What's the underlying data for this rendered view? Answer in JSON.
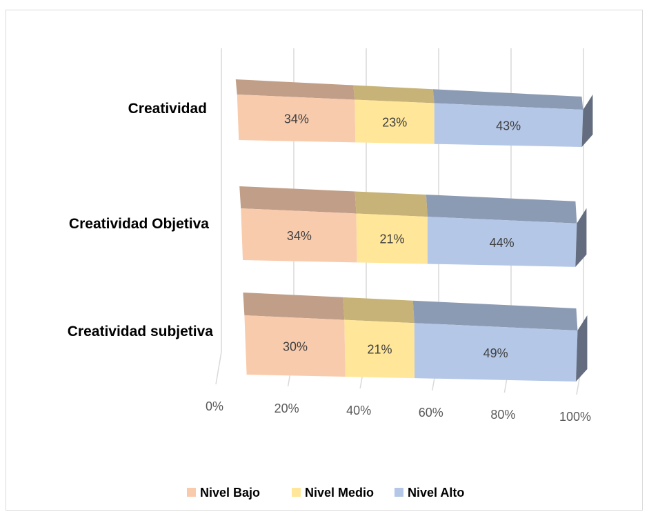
{
  "chart_data": {
    "type": "bar",
    "orientation": "horizontal",
    "stacked": "100%",
    "three_d": true,
    "categories": [
      "Creatividad",
      "Creatividad Objetiva",
      "Creatividad subjetiva"
    ],
    "series": [
      {
        "name": "Nivel Bajo",
        "values": [
          34,
          34,
          30
        ],
        "labels": [
          "34%",
          "34%",
          "30%"
        ],
        "color": "#f8cbad"
      },
      {
        "name": "Nivel Medio",
        "values": [
          23,
          21,
          21
        ],
        "labels": [
          "23%",
          "21%",
          "21%"
        ],
        "color": "#ffe699"
      },
      {
        "name": "Nivel Alto",
        "values": [
          43,
          44,
          49
        ],
        "labels": [
          "43%",
          "44%",
          "49%"
        ],
        "color": "#b4c7e7"
      }
    ],
    "x_ticks": [
      "0%",
      "20%",
      "40%",
      "60%",
      "80%",
      "100%"
    ],
    "xlim": [
      0,
      100
    ],
    "grid": true,
    "legend_position": "bottom"
  }
}
